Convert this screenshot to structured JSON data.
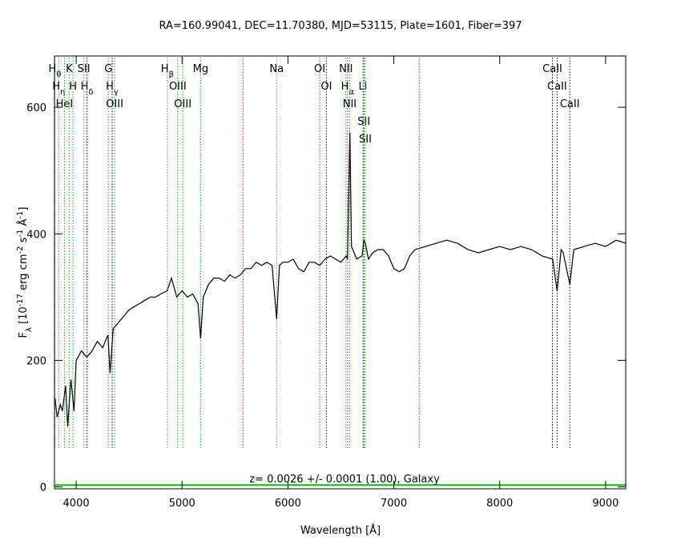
{
  "chart_data": {
    "type": "line",
    "title": "RA=160.99041, DEC=11.70380, MJD=53115, Plate=1601, Fiber=397",
    "xlabel": "Wavelength [Å]",
    "ylabel": [
      {
        "text": "F"
      },
      {
        "text": "λ",
        "script": "sub"
      },
      {
        "text": " [10"
      },
      {
        "text": "-17",
        "script": "super"
      },
      {
        "text": " erg cm"
      },
      {
        "text": "-2",
        "script": "super"
      },
      {
        "text": " s"
      },
      {
        "text": "-1",
        "script": "super"
      },
      {
        "text": " Å"
      },
      {
        "text": "-1",
        "script": "super"
      },
      {
        "text": "]"
      }
    ],
    "annotation": "z= 0.0026 +/- 0.0001 (1.00), Galaxy",
    "xlim": [
      3795,
      9190
    ],
    "ylim": [
      -3,
      681
    ],
    "xticks": [
      4000,
      5000,
      6000,
      7000,
      8000,
      9000
    ],
    "yticks": [
      0,
      200,
      400,
      600
    ],
    "series": [
      {
        "color": "#000000",
        "x": [
          3800,
          3820,
          3850,
          3870,
          3900,
          3920,
          3950,
          3980,
          4000,
          4050,
          4100,
          4150,
          4200,
          4250,
          4300,
          4320,
          4350,
          4400,
          4450,
          4500,
          4550,
          4600,
          4650,
          4700,
          4750,
          4800,
          4860,
          4900,
          4950,
          5000,
          5050,
          5100,
          5150,
          5175,
          5200,
          5250,
          5300,
          5350,
          5400,
          5450,
          5500,
          5550,
          5600,
          5650,
          5700,
          5750,
          5800,
          5850,
          5893,
          5920,
          5950,
          6000,
          6050,
          6100,
          6150,
          6200,
          6250,
          6300,
          6350,
          6400,
          6450,
          6500,
          6550,
          6562,
          6585,
          6600,
          6650,
          6700,
          6717,
          6731,
          6760,
          6800,
          6850,
          6900,
          6950,
          7000,
          7050,
          7100,
          7150,
          7200,
          7300,
          7400,
          7500,
          7600,
          7700,
          7800,
          7900,
          8000,
          8100,
          8200,
          8300,
          8400,
          8500,
          8542,
          8580,
          8600,
          8662,
          8700,
          8800,
          8900,
          9000,
          9100,
          9190
        ],
        "values": [
          140,
          110,
          130,
          120,
          160,
          95,
          170,
          120,
          200,
          215,
          205,
          215,
          230,
          220,
          240,
          180,
          250,
          260,
          270,
          280,
          285,
          290,
          295,
          300,
          300,
          305,
          310,
          330,
          300,
          310,
          300,
          305,
          290,
          235,
          300,
          320,
          330,
          330,
          325,
          335,
          330,
          335,
          345,
          345,
          355,
          350,
          355,
          350,
          265,
          350,
          355,
          355,
          360,
          345,
          340,
          355,
          355,
          350,
          360,
          365,
          360,
          355,
          365,
          360,
          560,
          380,
          360,
          365,
          390,
          385,
          360,
          370,
          375,
          375,
          365,
          345,
          340,
          345,
          365,
          375,
          380,
          385,
          390,
          385,
          375,
          370,
          375,
          380,
          375,
          380,
          375,
          365,
          360,
          310,
          375,
          370,
          320,
          375,
          380,
          385,
          380,
          390,
          385
        ]
      },
      {
        "color": "#00c000",
        "x": [
          3795,
          9190
        ],
        "values": [
          3,
          3
        ]
      }
    ],
    "lines": [
      {
        "wave": 3798,
        "color": "#00c000",
        "label": "H",
        "sub": "θ"
      },
      {
        "wave": 3835,
        "color": "#00c000",
        "label": "H",
        "sub": "η"
      },
      {
        "wave": 3889,
        "color": "#00c000",
        "label": "HeI"
      },
      {
        "wave": 3934,
        "color": "#00c000",
        "label": "K"
      },
      {
        "wave": 3970,
        "color": "#00c000",
        "label": "H"
      },
      {
        "wave": 4072,
        "color": "#00c000",
        "label": "SII"
      },
      {
        "wave": 4102,
        "color": "#000000",
        "label": "H",
        "sub": "δ"
      },
      {
        "wave": 4304,
        "color": "#00c000",
        "label": "G"
      },
      {
        "wave": 4340,
        "color": "#000000",
        "label": "H",
        "sub": "γ"
      },
      {
        "wave": 4363,
        "color": "#00c000",
        "label": "OIII"
      },
      {
        "wave": 4861,
        "color": "#00c000",
        "label": "H",
        "sub": "β"
      },
      {
        "wave": 4959,
        "color": "#00c000",
        "label": "OIII"
      },
      {
        "wave": 5007,
        "color": "#00c000",
        "label": "OIII"
      },
      {
        "wave": 5175,
        "color": "#00c000",
        "label": "Mg"
      },
      {
        "wave": 5577,
        "color": "#d000d0"
      },
      {
        "wave": 5893,
        "color": "#808080",
        "label": "Na"
      },
      {
        "wave": 6300,
        "color": "#d000d0",
        "label": "OI"
      },
      {
        "wave": 6363,
        "color": "#000000",
        "label": "OI"
      },
      {
        "wave": 6548,
        "color": "#00c000",
        "label": "NII"
      },
      {
        "wave": 6563,
        "color": "#d000d0",
        "label": "H",
        "sub": "α"
      },
      {
        "wave": 6583,
        "color": "#00c000",
        "label": "NII"
      },
      {
        "wave": 6708,
        "color": "#00c000",
        "label": "Li"
      },
      {
        "wave": 6717,
        "color": "#000000",
        "label": "SII"
      },
      {
        "wave": 6731,
        "color": "#00c000",
        "label": "SII"
      },
      {
        "wave": 7240,
        "color": "#d000d0"
      },
      {
        "wave": 8498,
        "color": "#000000",
        "label": "CaII"
      },
      {
        "wave": 8542,
        "color": "#000000",
        "label": "CaII"
      },
      {
        "wave": 8662,
        "color": "#000000",
        "label": "CaII"
      }
    ]
  }
}
